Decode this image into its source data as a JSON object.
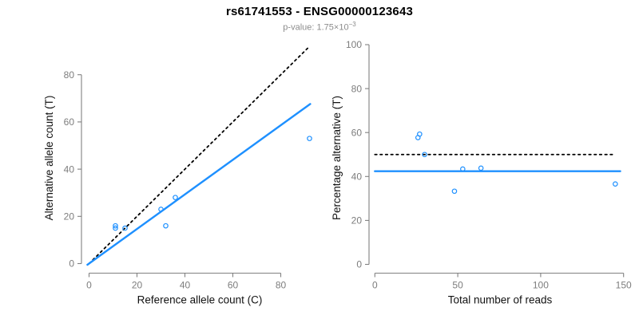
{
  "header": {
    "title": "rs61741553 - ENSG00000123643",
    "subtitle_prefix": "p-value: 1.75×10",
    "subtitle_exponent": "−3"
  },
  "colors": {
    "accent_blue": "#1E90FF",
    "axis_gray": "#808080",
    "tick_label_gray": "#7d7d7d",
    "axis_title_black": "#111111",
    "dashed_black": "#000000",
    "subtitle_gray": "#8c8c8c"
  },
  "chart_data": [
    {
      "type": "scatter",
      "name": "allele-count-scatter",
      "xlabel": "Reference allele count (C)",
      "ylabel": "Alternative allele count (T)",
      "xlim": [
        -3,
        95
      ],
      "ylim": [
        -4,
        93
      ],
      "xticks": [
        0,
        20,
        40,
        60,
        80
      ],
      "yticks": [
        0,
        20,
        40,
        60,
        80
      ],
      "grid": false,
      "legend": "none",
      "points": [
        [
          11,
          15
        ],
        [
          11,
          16
        ],
        [
          15,
          15
        ],
        [
          30,
          23
        ],
        [
          32,
          16
        ],
        [
          36,
          28
        ],
        [
          92,
          53
        ]
      ],
      "lines": [
        {
          "name": "identity-line",
          "style": "dashed",
          "color": "#000000",
          "x1": 0,
          "y1": 0,
          "x2": 91.5,
          "y2": 91.5
        },
        {
          "name": "fit-line",
          "style": "solid",
          "color": "#1E90FF",
          "x1": -0.7,
          "y1": -0.5,
          "x2": 92.3,
          "y2": 67.6
        }
      ]
    },
    {
      "type": "scatter",
      "name": "percentage-scatter",
      "xlabel": "Total number of reads",
      "ylabel": "Percentage alternative (T)",
      "xlim": [
        -3.5,
        154.5
      ],
      "ylim": [
        -4,
        100.7
      ],
      "xticks": [
        0,
        50,
        100,
        150
      ],
      "yticks": [
        0,
        20,
        40,
        60,
        80,
        100
      ],
      "grid": false,
      "legend": "none",
      "points": [
        [
          26,
          57.7
        ],
        [
          27,
          59.3
        ],
        [
          30,
          50
        ],
        [
          48,
          33.3
        ],
        [
          53,
          43.4
        ],
        [
          64,
          43.8
        ],
        [
          145,
          36.6
        ]
      ],
      "lines": [
        {
          "name": "expected-ratio-line",
          "style": "dashed",
          "color": "#000000",
          "x1": 0,
          "y1": 50,
          "x2": 144,
          "y2": 50
        },
        {
          "name": "fit-line",
          "style": "solid",
          "color": "#1E90FF",
          "x1": 0,
          "y1": 42.4,
          "x2": 148,
          "y2": 42.4
        }
      ]
    }
  ]
}
